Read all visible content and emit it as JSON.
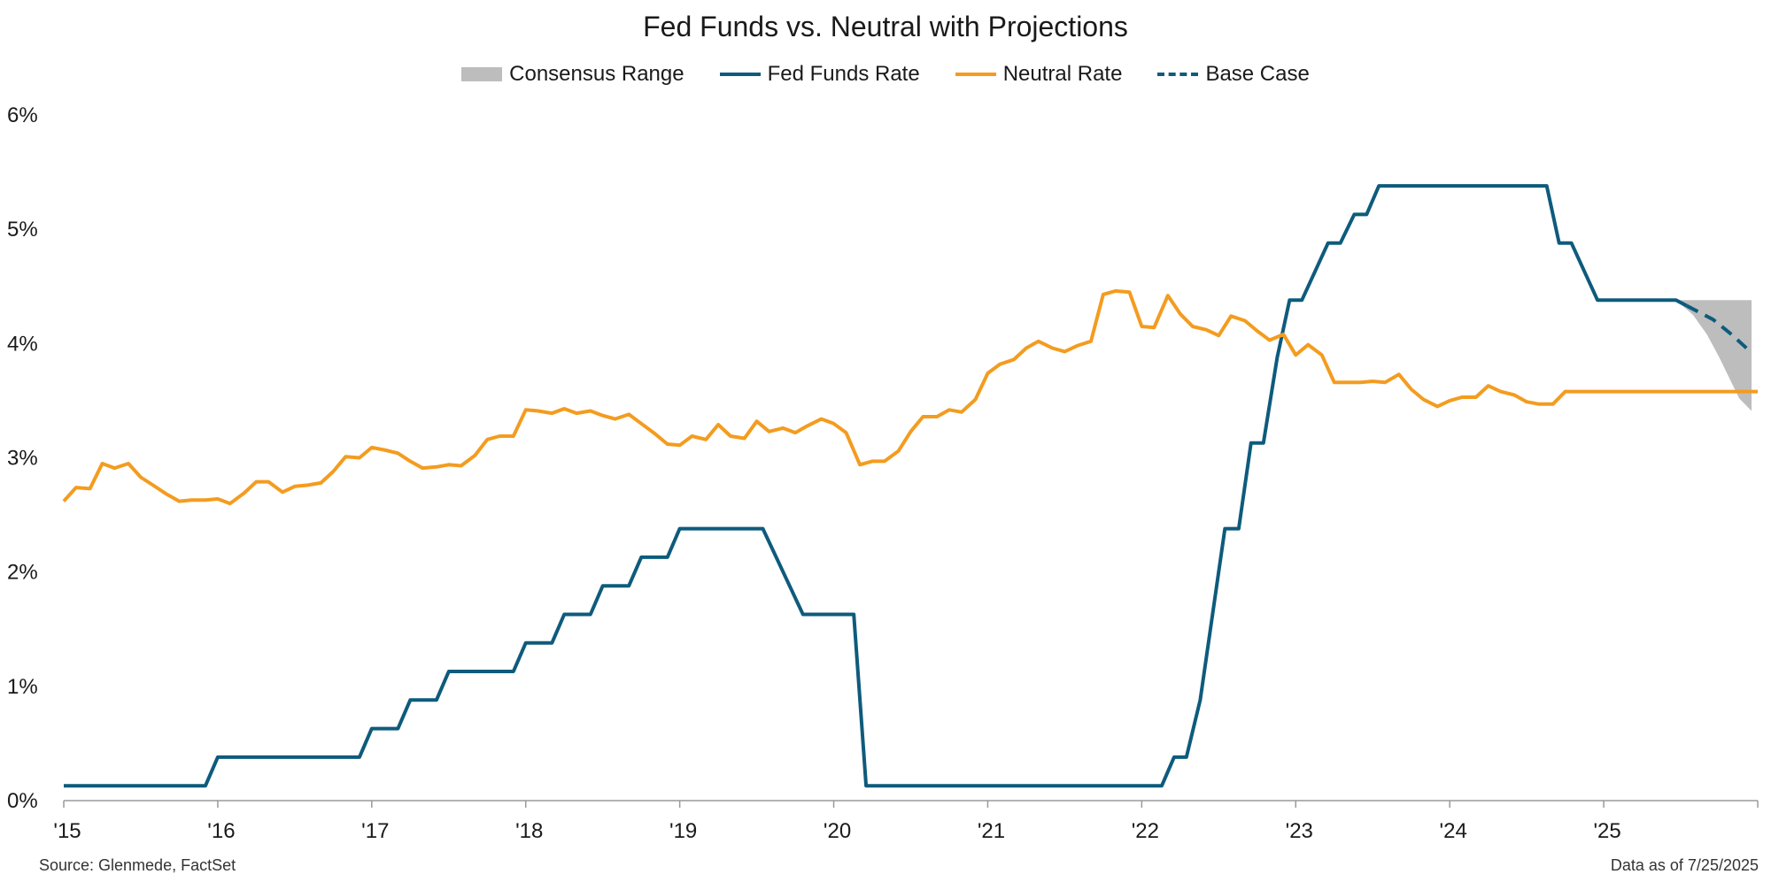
{
  "chart_data": {
    "type": "line",
    "title": "Fed Funds vs. Neutral with Projections",
    "ylim": [
      0,
      6
    ],
    "xlim": [
      2015.0,
      2026.0
    ],
    "y_tick_labels": [
      "0%",
      "1%",
      "2%",
      "3%",
      "4%",
      "5%",
      "6%"
    ],
    "x_tick_labels": [
      "'15",
      "'16",
      "'17",
      "'18",
      "'19",
      "'20",
      "'21",
      "'22",
      "'23",
      "'24",
      "'25"
    ],
    "grid": false,
    "legend_position": "top-center",
    "legend": [
      {
        "name": "Consensus Range",
        "kind": "area",
        "color": "#bdbdbd"
      },
      {
        "name": "Fed Funds Rate",
        "kind": "line",
        "color": "#0e5b7c"
      },
      {
        "name": "Neutral Rate",
        "kind": "line",
        "color": "#f39c1f"
      },
      {
        "name": "Base Case",
        "kind": "dashed",
        "color": "#0e5b7c"
      }
    ],
    "series": [
      {
        "name": "Fed Funds Rate",
        "color": "#0e5b7c",
        "points": [
          [
            2015.0,
            0.13
          ],
          [
            2015.92,
            0.13
          ],
          [
            2016.0,
            0.38
          ],
          [
            2016.92,
            0.38
          ],
          [
            2017.0,
            0.63
          ],
          [
            2017.17,
            0.63
          ],
          [
            2017.25,
            0.88
          ],
          [
            2017.42,
            0.88
          ],
          [
            2017.5,
            1.13
          ],
          [
            2017.92,
            1.13
          ],
          [
            2018.0,
            1.38
          ],
          [
            2018.17,
            1.38
          ],
          [
            2018.25,
            1.63
          ],
          [
            2018.42,
            1.63
          ],
          [
            2018.5,
            1.88
          ],
          [
            2018.67,
            1.88
          ],
          [
            2018.75,
            2.13
          ],
          [
            2018.92,
            2.13
          ],
          [
            2019.0,
            2.38
          ],
          [
            2019.54,
            2.38
          ],
          [
            2019.8,
            1.63
          ],
          [
            2020.13,
            1.63
          ],
          [
            2020.21,
            0.13
          ],
          [
            2022.13,
            0.13
          ],
          [
            2022.21,
            0.38
          ],
          [
            2022.29,
            0.38
          ],
          [
            2022.38,
            0.88
          ],
          [
            2022.54,
            2.38
          ],
          [
            2022.63,
            2.38
          ],
          [
            2022.71,
            3.13
          ],
          [
            2022.79,
            3.13
          ],
          [
            2022.88,
            3.88
          ],
          [
            2022.96,
            4.38
          ],
          [
            2023.04,
            4.38
          ],
          [
            2023.21,
            4.88
          ],
          [
            2023.29,
            4.88
          ],
          [
            2023.38,
            5.13
          ],
          [
            2023.46,
            5.13
          ],
          [
            2023.54,
            5.38
          ],
          [
            2024.63,
            5.38
          ],
          [
            2024.71,
            4.88
          ],
          [
            2024.79,
            4.88
          ],
          [
            2024.96,
            4.38
          ],
          [
            2025.47,
            4.38
          ],
          [
            2025.54,
            4.33
          ]
        ]
      },
      {
        "name": "Neutral Rate",
        "color": "#f39c1f",
        "points": [
          [
            2015.0,
            2.62
          ],
          [
            2015.08,
            2.74
          ],
          [
            2015.17,
            2.73
          ],
          [
            2015.25,
            2.95
          ],
          [
            2015.33,
            2.91
          ],
          [
            2015.42,
            2.95
          ],
          [
            2015.5,
            2.83
          ],
          [
            2015.58,
            2.76
          ],
          [
            2015.67,
            2.68
          ],
          [
            2015.75,
            2.62
          ],
          [
            2015.83,
            2.63
          ],
          [
            2015.92,
            2.63
          ],
          [
            2016.0,
            2.64
          ],
          [
            2016.08,
            2.6
          ],
          [
            2016.17,
            2.69
          ],
          [
            2016.25,
            2.79
          ],
          [
            2016.33,
            2.79
          ],
          [
            2016.42,
            2.7
          ],
          [
            2016.5,
            2.75
          ],
          [
            2016.58,
            2.76
          ],
          [
            2016.67,
            2.78
          ],
          [
            2016.75,
            2.88
          ],
          [
            2016.83,
            3.01
          ],
          [
            2016.92,
            3.0
          ],
          [
            2017.0,
            3.09
          ],
          [
            2017.08,
            3.07
          ],
          [
            2017.17,
            3.04
          ],
          [
            2017.25,
            2.97
          ],
          [
            2017.33,
            2.91
          ],
          [
            2017.42,
            2.92
          ],
          [
            2017.5,
            2.94
          ],
          [
            2017.58,
            2.93
          ],
          [
            2017.67,
            3.02
          ],
          [
            2017.75,
            3.16
          ],
          [
            2017.83,
            3.19
          ],
          [
            2017.92,
            3.19
          ],
          [
            2018.0,
            3.42
          ],
          [
            2018.08,
            3.41
          ],
          [
            2018.17,
            3.39
          ],
          [
            2018.25,
            3.43
          ],
          [
            2018.33,
            3.39
          ],
          [
            2018.42,
            3.41
          ],
          [
            2018.5,
            3.37
          ],
          [
            2018.58,
            3.34
          ],
          [
            2018.67,
            3.38
          ],
          [
            2018.75,
            3.3
          ],
          [
            2018.83,
            3.22
          ],
          [
            2018.92,
            3.12
          ],
          [
            2019.0,
            3.11
          ],
          [
            2019.08,
            3.19
          ],
          [
            2019.17,
            3.16
          ],
          [
            2019.25,
            3.29
          ],
          [
            2019.33,
            3.19
          ],
          [
            2019.42,
            3.17
          ],
          [
            2019.5,
            3.32
          ],
          [
            2019.58,
            3.23
          ],
          [
            2019.67,
            3.26
          ],
          [
            2019.75,
            3.22
          ],
          [
            2019.83,
            3.28
          ],
          [
            2019.92,
            3.34
          ],
          [
            2020.0,
            3.3
          ],
          [
            2020.08,
            3.22
          ],
          [
            2020.17,
            2.94
          ],
          [
            2020.25,
            2.97
          ],
          [
            2020.33,
            2.97
          ],
          [
            2020.42,
            3.06
          ],
          [
            2020.5,
            3.23
          ],
          [
            2020.58,
            3.36
          ],
          [
            2020.67,
            3.36
          ],
          [
            2020.75,
            3.42
          ],
          [
            2020.83,
            3.4
          ],
          [
            2020.92,
            3.51
          ],
          [
            2021.0,
            3.74
          ],
          [
            2021.08,
            3.82
          ],
          [
            2021.17,
            3.86
          ],
          [
            2021.25,
            3.96
          ],
          [
            2021.33,
            4.02
          ],
          [
            2021.42,
            3.96
          ],
          [
            2021.5,
            3.93
          ],
          [
            2021.58,
            3.98
          ],
          [
            2021.67,
            4.02
          ],
          [
            2021.75,
            4.43
          ],
          [
            2021.83,
            4.46
          ],
          [
            2021.92,
            4.45
          ],
          [
            2022.0,
            4.15
          ],
          [
            2022.08,
            4.14
          ],
          [
            2022.17,
            4.42
          ],
          [
            2022.25,
            4.26
          ],
          [
            2022.33,
            4.15
          ],
          [
            2022.42,
            4.12
          ],
          [
            2022.5,
            4.07
          ],
          [
            2022.58,
            4.24
          ],
          [
            2022.67,
            4.2
          ],
          [
            2022.75,
            4.11
          ],
          [
            2022.83,
            4.03
          ],
          [
            2022.92,
            4.08
          ],
          [
            2023.0,
            3.9
          ],
          [
            2023.08,
            3.99
          ],
          [
            2023.17,
            3.9
          ],
          [
            2023.25,
            3.66
          ],
          [
            2023.33,
            3.66
          ],
          [
            2023.42,
            3.66
          ],
          [
            2023.5,
            3.67
          ],
          [
            2023.58,
            3.66
          ],
          [
            2023.67,
            3.73
          ],
          [
            2023.75,
            3.6
          ],
          [
            2023.83,
            3.51
          ],
          [
            2023.92,
            3.45
          ],
          [
            2024.0,
            3.5
          ],
          [
            2024.08,
            3.53
          ],
          [
            2024.17,
            3.53
          ],
          [
            2024.25,
            3.63
          ],
          [
            2024.33,
            3.58
          ],
          [
            2024.42,
            3.55
          ],
          [
            2024.5,
            3.49
          ],
          [
            2024.58,
            3.47
          ],
          [
            2024.67,
            3.47
          ],
          [
            2024.75,
            3.58
          ],
          [
            2025.0,
            3.58
          ],
          [
            2026.0,
            3.58
          ]
        ]
      },
      {
        "name": "Base Case",
        "color": "#0e5b7c",
        "dashed": true,
        "points": [
          [
            2025.54,
            4.33
          ],
          [
            2025.71,
            4.21
          ],
          [
            2025.83,
            4.08
          ],
          [
            2025.96,
            3.92
          ]
        ]
      }
    ],
    "band": {
      "name": "Consensus Range",
      "color": "#bdbdbd",
      "upper": [
        [
          2025.47,
          4.38
        ],
        [
          2025.96,
          4.38
        ]
      ],
      "lower": [
        [
          2025.47,
          4.38
        ],
        [
          2025.58,
          4.25
        ],
        [
          2025.67,
          4.08
        ],
        [
          2025.75,
          3.88
        ],
        [
          2025.88,
          3.52
        ],
        [
          2025.96,
          3.41
        ]
      ]
    }
  },
  "footer": {
    "source": "Source: Glenmede, FactSet",
    "data_as_of": "Data as of 7/25/2025"
  }
}
